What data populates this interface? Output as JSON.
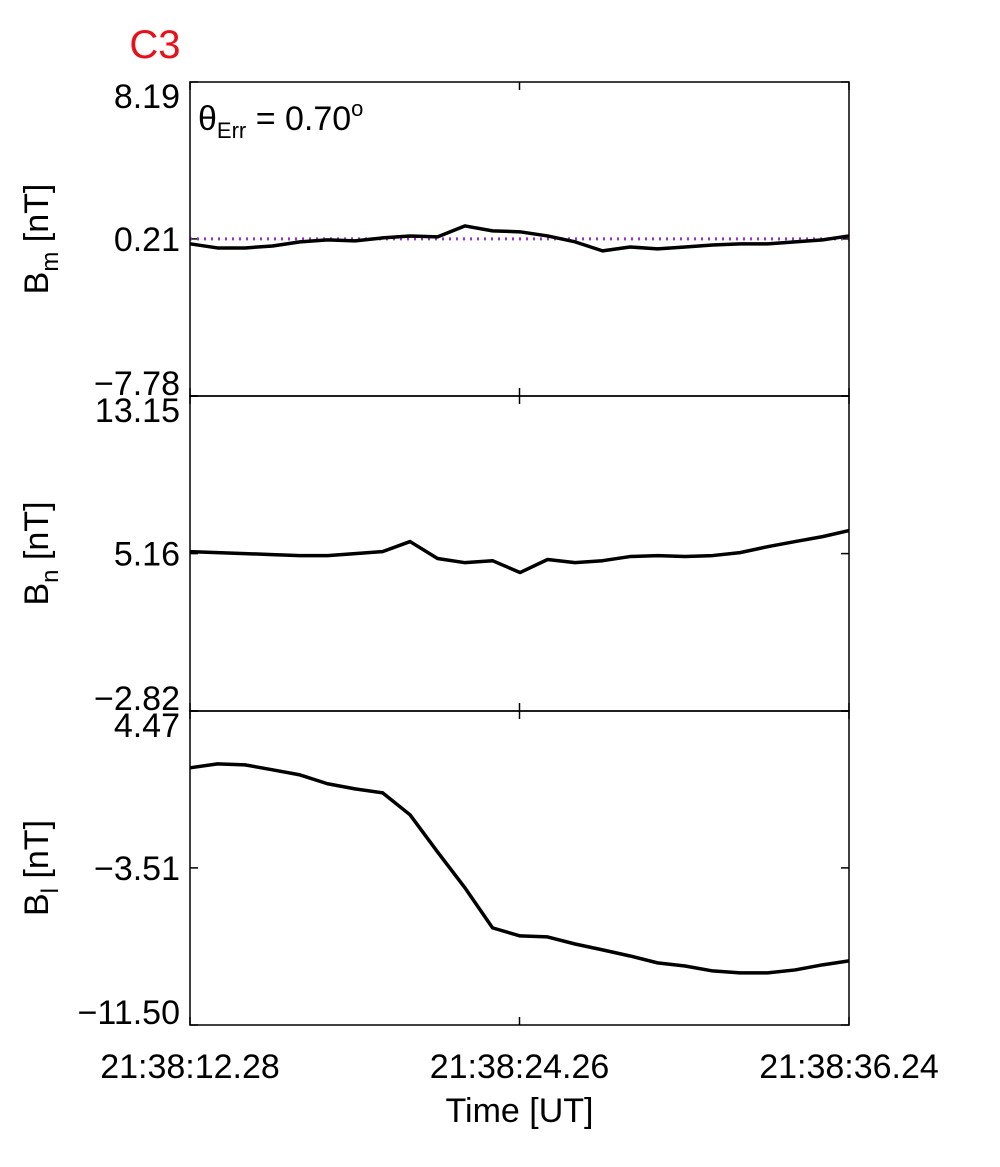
{
  "chart_data": [
    {
      "type": "line",
      "title": "C3",
      "title_color": "#e8101a",
      "ylabel": {
        "base": "B",
        "sub": "m",
        "unit": " [nT]"
      },
      "annotation": {
        "symbol": "θ",
        "subscript": "Err",
        "text": " =  0.70",
        "superscript": "o"
      },
      "reference_line": {
        "value": 0.21,
        "color": "#9933cc",
        "style": "dotted"
      },
      "x": [
        "21:38:12.28",
        "21:38:13.28",
        "21:38:14.28",
        "21:38:15.28",
        "21:38:16.28",
        "21:38:17.28",
        "21:38:18.28",
        "21:38:19.28",
        "21:38:20.28",
        "21:38:21.28",
        "21:38:22.28",
        "21:38:23.28",
        "21:38:24.28",
        "21:38:25.28",
        "21:38:26.28",
        "21:38:27.28",
        "21:38:28.28",
        "21:38:29.28",
        "21:38:30.28",
        "21:38:31.28",
        "21:38:32.28",
        "21:38:33.28",
        "21:38:34.28",
        "21:38:35.28",
        "21:38:36.24"
      ],
      "values": [
        -0.04,
        -0.25,
        -0.25,
        -0.15,
        0.06,
        0.16,
        0.11,
        0.26,
        0.36,
        0.31,
        0.87,
        0.62,
        0.57,
        0.36,
        0.06,
        -0.4,
        -0.2,
        -0.3,
        -0.2,
        -0.1,
        -0.04,
        -0.04,
        0.06,
        0.16,
        0.36
      ],
      "color": "#000000",
      "xlim": [
        "21:38:12.28",
        "21:38:36.24"
      ],
      "xticks": [
        "21:38:12.28",
        "21:38:24.26",
        "21:38:36.24"
      ],
      "ylim": [
        -7.78,
        8.19
      ],
      "yticks": [
        {
          "value": -7.78,
          "label": "−7.78"
        },
        0.21,
        8.19
      ]
    },
    {
      "type": "line",
      "ylabel": {
        "base": "B",
        "sub": "n",
        "unit": " [nT]"
      },
      "x": [
        "21:38:12.28",
        "21:38:13.28",
        "21:38:14.28",
        "21:38:15.28",
        "21:38:16.28",
        "21:38:17.28",
        "21:38:18.28",
        "21:38:19.28",
        "21:38:20.28",
        "21:38:21.28",
        "21:38:22.28",
        "21:38:23.28",
        "21:38:24.28",
        "21:38:25.28",
        "21:38:26.28",
        "21:38:27.28",
        "21:38:28.28",
        "21:38:29.28",
        "21:38:30.28",
        "21:38:31.28",
        "21:38:32.28",
        "21:38:33.28",
        "21:38:34.28",
        "21:38:35.28",
        "21:38:36.24"
      ],
      "values": [
        5.26,
        5.21,
        5.16,
        5.11,
        5.06,
        5.06,
        5.16,
        5.26,
        5.77,
        4.91,
        4.7,
        4.8,
        4.2,
        4.86,
        4.7,
        4.8,
        5.01,
        5.06,
        5.01,
        5.06,
        5.21,
        5.51,
        5.77,
        6.02,
        6.33
      ],
      "color": "#000000",
      "xlim": [
        "21:38:12.28",
        "21:38:36.24"
      ],
      "xticks": [
        "21:38:12.28",
        "21:38:24.26",
        "21:38:36.24"
      ],
      "ylim": [
        -2.82,
        13.15
      ],
      "yticks": [
        {
          "value": -2.82,
          "label": "−2.82"
        },
        5.16,
        13.15
      ]
    },
    {
      "type": "line",
      "ylabel": {
        "base": "B",
        "sub": "l",
        "unit": " [nT]"
      },
      "xlabel": "Time [UT]",
      "x": [
        "21:38:12.28",
        "21:38:13.28",
        "21:38:14.28",
        "21:38:15.28",
        "21:38:16.28",
        "21:38:17.28",
        "21:38:18.28",
        "21:38:19.28",
        "21:38:20.28",
        "21:38:21.28",
        "21:38:22.28",
        "21:38:23.28",
        "21:38:24.28",
        "21:38:25.28",
        "21:38:26.28",
        "21:38:27.28",
        "21:38:28.28",
        "21:38:29.28",
        "21:38:30.28",
        "21:38:31.28",
        "21:38:32.28",
        "21:38:33.28",
        "21:38:34.28",
        "21:38:35.28",
        "21:38:36.24"
      ],
      "values": [
        1.58,
        1.78,
        1.73,
        1.48,
        1.22,
        0.77,
        0.51,
        0.31,
        -0.81,
        -2.7,
        -4.53,
        -6.56,
        -6.97,
        -7.02,
        -7.38,
        -7.68,
        -7.99,
        -8.34,
        -8.5,
        -8.75,
        -8.85,
        -8.85,
        -8.7,
        -8.44,
        -8.24
      ],
      "color": "#000000",
      "xlim": [
        "21:38:12.28",
        "21:38:36.24"
      ],
      "xticks": [
        "21:38:12.28",
        "21:38:24.26",
        "21:38:36.24"
      ],
      "ylim": [
        -11.5,
        4.47
      ],
      "yticks": [
        {
          "value": -11.5,
          "label": "−11.50"
        },
        {
          "value": -3.51,
          "label": "−3.51"
        },
        4.47
      ]
    }
  ]
}
